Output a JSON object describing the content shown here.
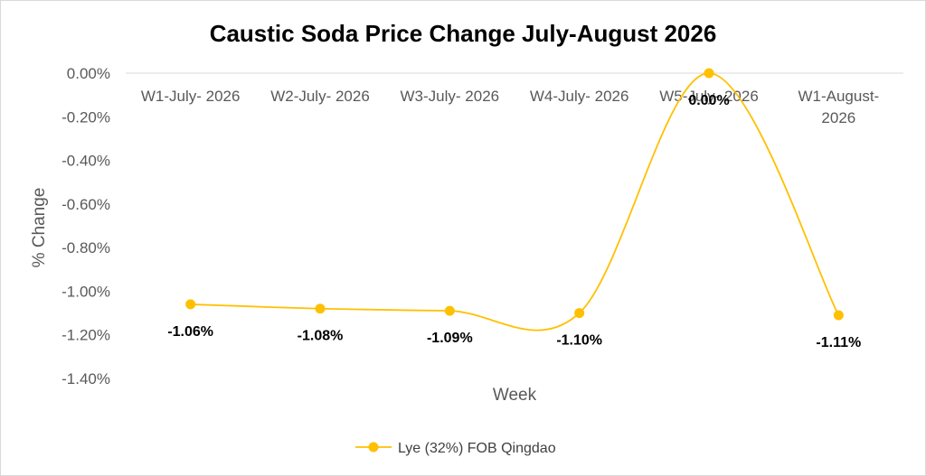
{
  "chart_data": {
    "type": "line",
    "title": "Caustic Soda Price Change July-August 2026",
    "xlabel": "Week",
    "ylabel": "% Change",
    "categories": [
      "W1-July- 2026",
      "W2-July- 2026",
      "W3-July- 2026",
      "W4-July- 2026",
      "W5-July- 2026",
      "W1-August- 2026"
    ],
    "series": [
      {
        "name": "Lye (32%) FOB Qingdao",
        "values": [
          -1.06,
          -1.08,
          -1.09,
          -1.1,
          0.0,
          -1.11
        ],
        "data_labels": [
          "-1.06%",
          "-1.08%",
          "-1.09%",
          "-1.10%",
          "0.00%",
          "-1.11%"
        ],
        "color": "#FFC000"
      }
    ],
    "ylim": [
      -1.4,
      0.0
    ],
    "yticks": [
      "0.00%",
      "-0.20%",
      "-0.40%",
      "-0.60%",
      "-0.80%",
      "-1.00%",
      "-1.20%",
      "-1.40%"
    ],
    "ytick_values": [
      0.0,
      -0.2,
      -0.4,
      -0.6,
      -0.8,
      -1.0,
      -1.2,
      -1.4
    ],
    "smoothed": true,
    "x_axis_position": "top",
    "grid": false,
    "legend_position": "bottom"
  }
}
